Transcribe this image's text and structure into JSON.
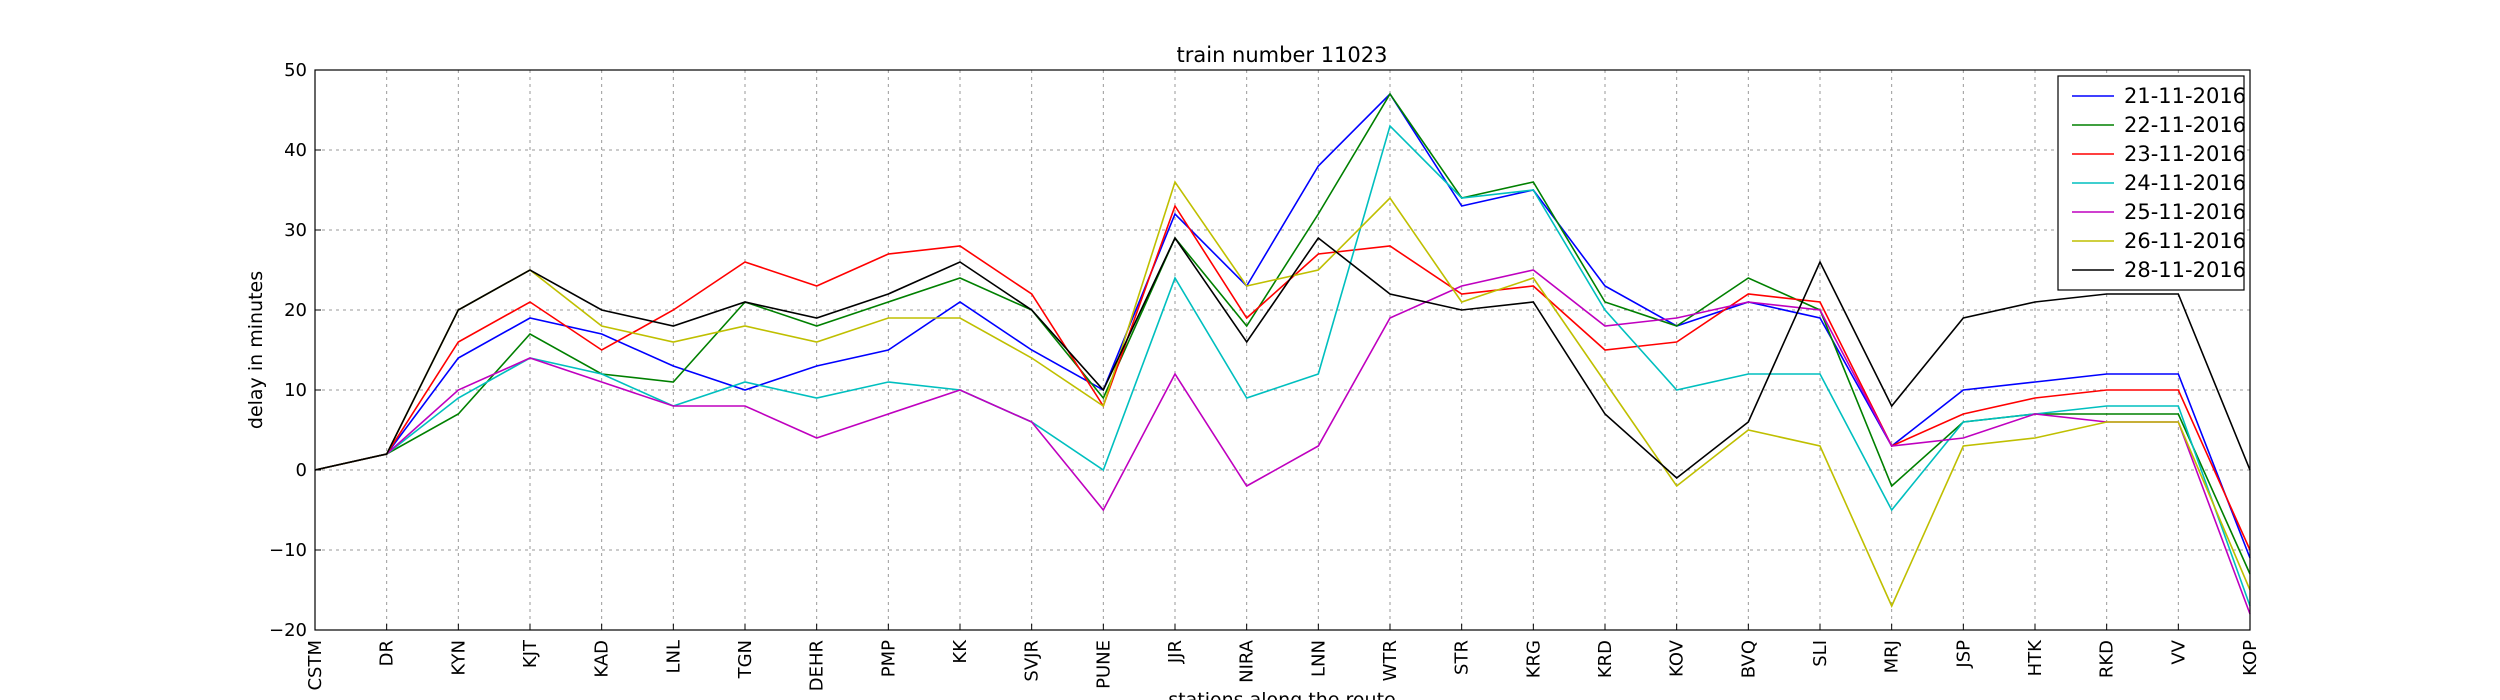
{
  "chart_data": {
    "type": "line",
    "title": "train number 11023",
    "xlabel": "stations along the route",
    "ylabel": "delay in minutes",
    "ylim": [
      -20,
      50
    ],
    "yticks": [
      -20,
      -10,
      0,
      10,
      20,
      30,
      40,
      50
    ],
    "grid": true,
    "legend_position": "top-right",
    "categories": [
      "CSTM",
      "DR",
      "KYN",
      "KJT",
      "KAD",
      "LNL",
      "TGN",
      "DEHR",
      "PMP",
      "KK",
      "SVJR",
      "PUNE",
      "JJR",
      "NIRA",
      "LNN",
      "WTR",
      "STR",
      "KRG",
      "KRD",
      "KOV",
      "BVQ",
      "SLI",
      "MRJ",
      "JSP",
      "HTK",
      "RKD",
      "VV",
      "KOP"
    ],
    "series": [
      {
        "name": "21-11-2016",
        "color": "#0000ff",
        "values": [
          0,
          2,
          14,
          19,
          17,
          13,
          10,
          13,
          15,
          21,
          15,
          10,
          32,
          23,
          38,
          47,
          33,
          35,
          23,
          18,
          21,
          19,
          3,
          10,
          11,
          12,
          12,
          -11
        ]
      },
      {
        "name": "22-11-2016",
        "color": "#008000",
        "values": [
          0,
          2,
          7,
          17,
          12,
          11,
          21,
          18,
          21,
          24,
          20,
          9,
          29,
          18,
          32,
          47,
          34,
          36,
          21,
          18,
          24,
          20,
          -2,
          6,
          7,
          7,
          7,
          -13
        ]
      },
      {
        "name": "23-11-2016",
        "color": "#ff0000",
        "values": [
          0,
          2,
          16,
          21,
          15,
          20,
          26,
          23,
          27,
          28,
          22,
          8,
          33,
          19,
          27,
          28,
          22,
          23,
          15,
          16,
          22,
          21,
          3,
          7,
          9,
          10,
          10,
          -10
        ]
      },
      {
        "name": "24-11-2016",
        "color": "#00bfbf",
        "values": [
          0,
          2,
          9,
          14,
          12,
          8,
          11,
          9,
          11,
          10,
          6,
          0,
          24,
          9,
          12,
          43,
          34,
          35,
          20,
          10,
          12,
          12,
          -5,
          6,
          7,
          8,
          8,
          -17
        ]
      },
      {
        "name": "25-11-2016",
        "color": "#bf00bf",
        "values": [
          0,
          2,
          10,
          14,
          11,
          8,
          8,
          4,
          7,
          10,
          6,
          -5,
          12,
          -2,
          3,
          19,
          23,
          25,
          18,
          19,
          21,
          20,
          3,
          4,
          7,
          6,
          6,
          -18
        ]
      },
      {
        "name": "26-11-2016",
        "color": "#bfbf00",
        "values": [
          0,
          2,
          20,
          25,
          18,
          16,
          18,
          16,
          19,
          19,
          14,
          8,
          36,
          23,
          25,
          34,
          21,
          24,
          11,
          -2,
          5,
          3,
          -17,
          3,
          4,
          6,
          6,
          -15
        ]
      },
      {
        "name": "28-11-2016",
        "color": "#000000",
        "values": [
          0,
          2,
          20,
          25,
          20,
          18,
          21,
          19,
          22,
          26,
          20,
          10,
          29,
          16,
          29,
          22,
          20,
          21,
          7,
          -1,
          6,
          26,
          8,
          19,
          21,
          22,
          22,
          0
        ]
      }
    ]
  }
}
